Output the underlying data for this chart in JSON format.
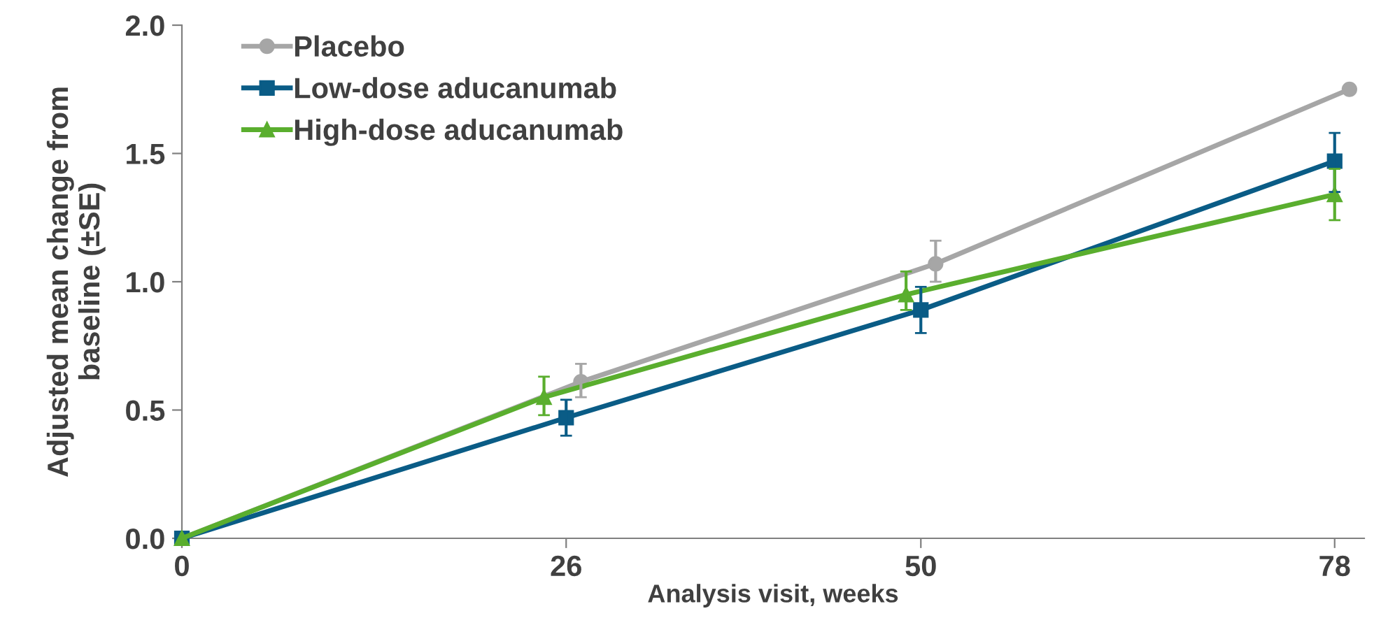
{
  "chart_data": {
    "type": "line",
    "xlabel": "Analysis visit, weeks",
    "ylabel": "Adjusted mean change from\nbaseline (±SE)",
    "xlim": [
      0,
      80
    ],
    "xticks": [
      0,
      26,
      50,
      78
    ],
    "ylim": [
      0,
      2.0
    ],
    "yticks": [
      {
        "value": 0,
        "label": "0.0"
      },
      {
        "value": 0.5,
        "label": "0.5"
      },
      {
        "value": 1.0,
        "label": "1.0"
      },
      {
        "value": 1.5,
        "label": "1.5"
      },
      {
        "value": 2.0,
        "label": "2.0"
      }
    ],
    "legend": "top left",
    "grid": false,
    "series": [
      {
        "name": "Placebo",
        "color": "#a6a6a6",
        "marker": "circle",
        "x": [
          0,
          27,
          51,
          79
        ],
        "values": [
          0,
          0.61,
          1.07,
          1.75
        ],
        "errors": [
          null,
          [
            0.55,
            0.68
          ],
          [
            1.0,
            1.16
          ],
          null
        ]
      },
      {
        "name": "Low-dose aducanumab",
        "color": "#0a5c86",
        "marker": "square",
        "x": [
          0,
          26,
          50,
          78
        ],
        "values": [
          0,
          0.47,
          0.89,
          1.47
        ],
        "errors": [
          null,
          [
            0.4,
            0.54
          ],
          [
            0.8,
            0.98
          ],
          [
            1.35,
            1.58
          ]
        ]
      },
      {
        "name": "High-dose aducanumab",
        "color": "#5aae2e",
        "marker": "triangle",
        "x": [
          0,
          24.5,
          49,
          78
        ],
        "values": [
          0,
          0.55,
          0.95,
          1.34
        ],
        "errors": [
          null,
          [
            0.48,
            0.63
          ],
          [
            0.89,
            1.04
          ],
          0.1
        ]
      }
    ]
  }
}
